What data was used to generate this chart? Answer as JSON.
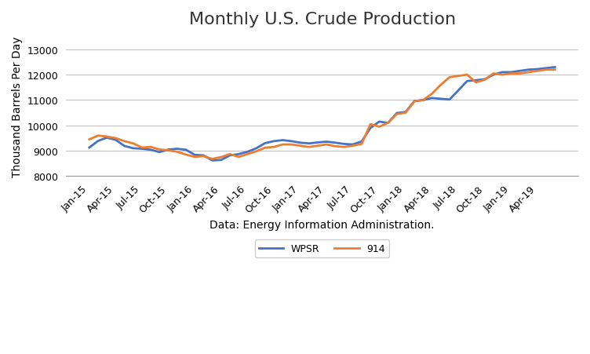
{
  "title": "Monthly U.S. Crude Production",
  "xlabel": "Data: Energy Information Administration.",
  "ylabel": "Thousand Barrels Per Day",
  "ylim": [
    8000,
    13500
  ],
  "yticks": [
    8000,
    9000,
    10000,
    11000,
    12000,
    13000
  ],
  "x_labels": [
    "Jan-15",
    "Apr-15",
    "Jul-15",
    "Oct-15",
    "Jan-16",
    "Apr-16",
    "Jul-16",
    "Oct-16",
    "Jan-17",
    "Apr-17",
    "Jul-17",
    "Oct-17",
    "Jan-18",
    "Apr-18",
    "Jul-18",
    "Oct-18",
    "Jan-19",
    "Apr-19"
  ],
  "wpsr_color": "#4472C4",
  "s914_color": "#ED7D31",
  "wpsr_linewidth": 2.0,
  "s914_linewidth": 2.0,
  "legend_labels": [
    "WPSR",
    "914"
  ],
  "background_color": "#ffffff",
  "grid_color": "#C0C0C0",
  "title_fontsize": 16,
  "axis_fontsize": 10,
  "tick_fontsize": 9,
  "wpsr_data": [
    9130,
    9390,
    9520,
    9430,
    9190,
    9100,
    9080,
    9040,
    8950,
    9050,
    9080,
    9040,
    8840,
    8820,
    8620,
    8640,
    8820,
    8870,
    8960,
    9100,
    9300,
    9380,
    9420,
    9380,
    9320,
    9290,
    9330,
    9360,
    9320,
    9270,
    9250,
    9370,
    9900,
    10150,
    10100,
    10490,
    10530,
    10960,
    11000,
    11080,
    11050,
    11020,
    11380,
    11750,
    11780,
    11820,
    12000,
    12100,
    12100,
    12150,
    12200,
    12220,
    12260,
    12300
  ],
  "s914_data": [
    9450,
    9600,
    9560,
    9500,
    9380,
    9290,
    9130,
    9150,
    9050,
    9020,
    8960,
    8850,
    8760,
    8790,
    8680,
    8750,
    8870,
    8760,
    8870,
    8980,
    9120,
    9150,
    9250,
    9250,
    9200,
    9150,
    9200,
    9250,
    9180,
    9150,
    9200,
    9270,
    10050,
    9950,
    10100,
    10450,
    10500,
    10950,
    11000,
    11250,
    11600,
    11900,
    11950,
    12000,
    11700,
    11800,
    12050,
    12000,
    12050,
    12050,
    12100,
    12150,
    12200,
    12200
  ],
  "n_points": 54
}
